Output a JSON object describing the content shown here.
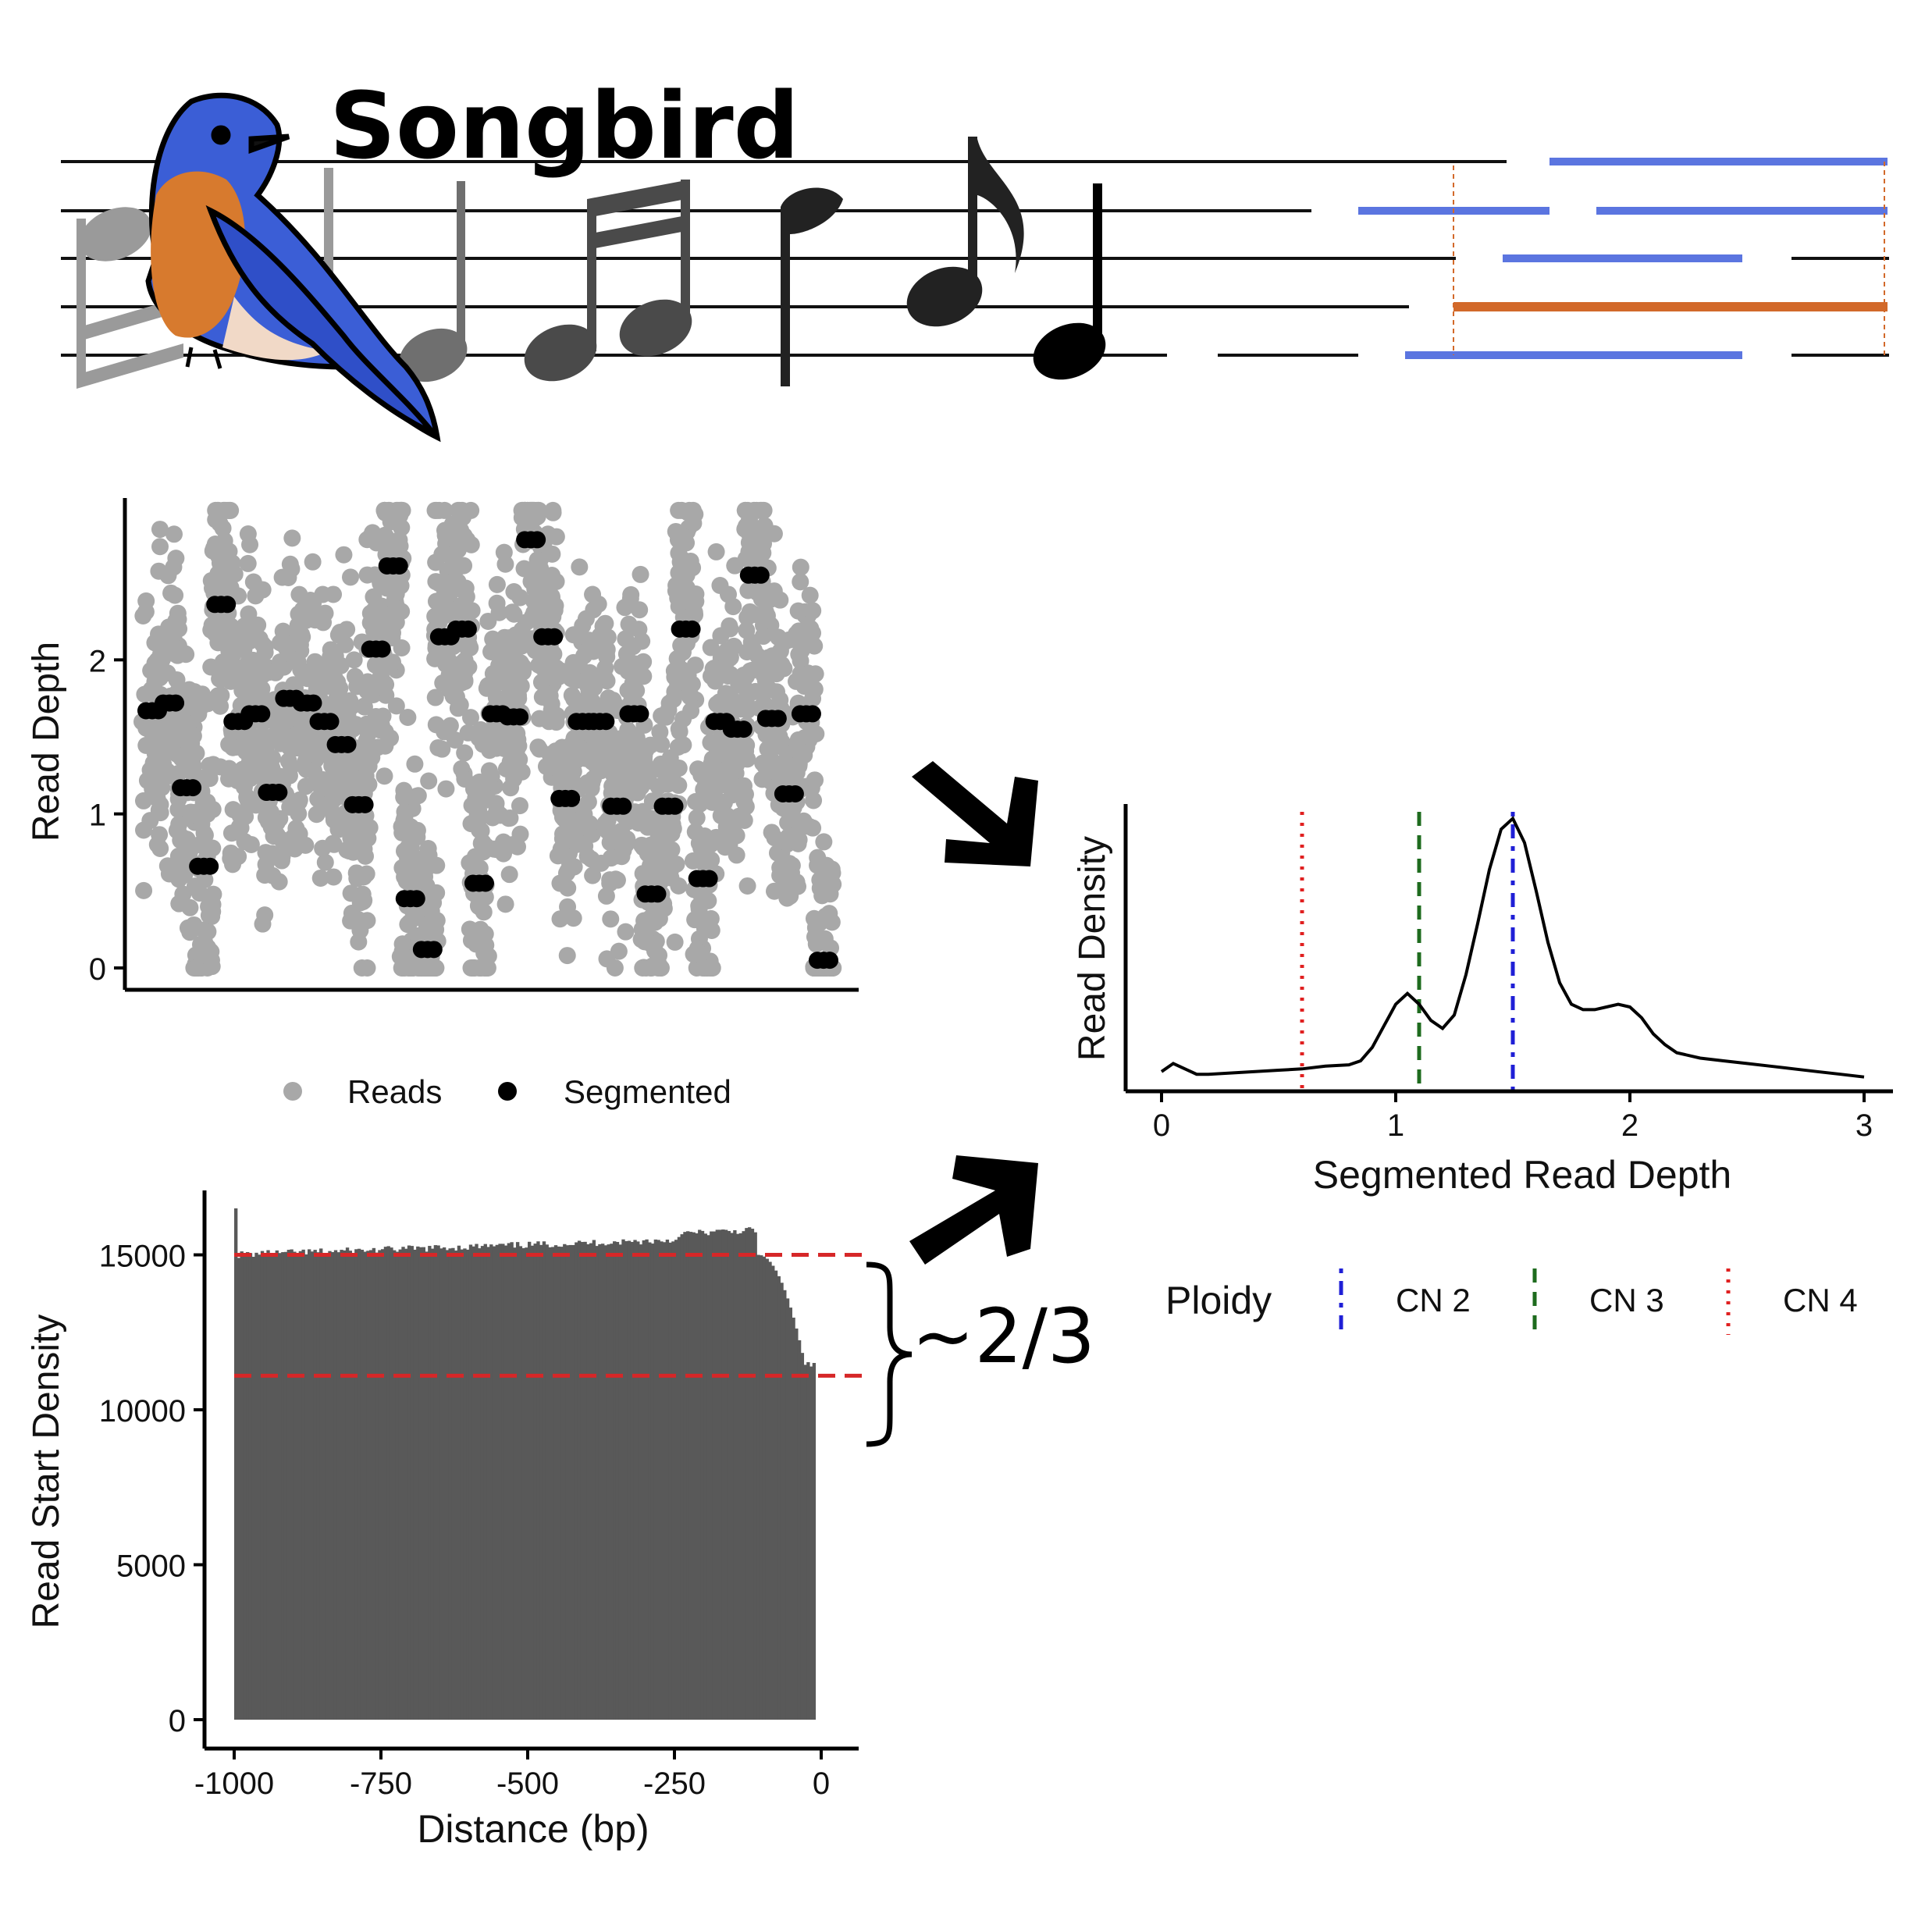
{
  "title": "Songbird",
  "icons": [
    "bluebird-icon",
    "music-notes-icon",
    "segment-lines-icon",
    "arrow-icon",
    "brace-icon"
  ],
  "colors": {
    "reads": "#a8a8a8",
    "segmented": "#000000",
    "bars": "#595959",
    "ref_line": "#d62728",
    "cn2": "#1f1fd6",
    "cn3": "#1e6b1e",
    "cn4": "#e02020",
    "segment_blue": "#5b75e0",
    "segment_orange": "#d2692a"
  },
  "annotation": {
    "fraction": "~2/3"
  },
  "chart_data": [
    {
      "type": "scatter",
      "xlabel": "",
      "ylabel": "Read Depth",
      "ylim": [
        0,
        3.0
      ],
      "yticks": [
        "0",
        "1",
        "2"
      ],
      "legend": {
        "placement": "bottom",
        "items": [
          "Reads",
          "Segmented"
        ]
      },
      "series": [
        {
          "name": "Reads",
          "x": [],
          "values": []
        },
        {
          "name": "Segmented",
          "x": [
            1,
            2,
            3,
            4,
            5,
            6,
            7,
            8,
            9,
            10,
            11,
            12,
            13,
            14,
            15,
            16,
            17,
            18,
            19,
            20,
            21,
            22,
            23,
            24,
            25,
            26,
            27,
            28,
            29,
            30,
            31,
            32,
            33,
            34,
            35,
            36,
            37,
            38,
            39,
            40
          ],
          "values": [
            1.67,
            1.72,
            1.17,
            0.66,
            2.36,
            1.6,
            1.65,
            1.14,
            1.75,
            1.72,
            1.6,
            1.45,
            1.06,
            2.07,
            2.61,
            0.45,
            0.12,
            2.15,
            2.2,
            0.55,
            1.65,
            1.63,
            2.78,
            2.15,
            1.1,
            1.6,
            1.6,
            1.05,
            1.65,
            0.48,
            1.05,
            2.2,
            0.58,
            1.6,
            1.55,
            2.55,
            1.62,
            1.13,
            1.65,
            0.05
          ]
        }
      ]
    },
    {
      "type": "bar",
      "xlabel": "Distance (bp)",
      "ylabel": "Read Start Density",
      "xlim": [
        -1000,
        0
      ],
      "ylim": [
        0,
        16500
      ],
      "xticks": [
        "-1000",
        "-750",
        "-500",
        "-250",
        "0"
      ],
      "yticks": [
        "0",
        "5000",
        "10000",
        "15000"
      ],
      "reference_lines": [
        15000,
        11100
      ],
      "x": [],
      "values": []
    },
    {
      "type": "line",
      "xlabel": "Segmented Read Depth",
      "ylabel": "Read Density",
      "xlim": [
        0,
        3
      ],
      "xticks": [
        "0",
        "1",
        "2",
        "3"
      ],
      "x": [
        0,
        0.05,
        0.1,
        0.15,
        0.2,
        0.3,
        0.4,
        0.5,
        0.6,
        0.7,
        0.8,
        0.85,
        0.9,
        0.95,
        1.0,
        1.05,
        1.1,
        1.15,
        1.2,
        1.25,
        1.3,
        1.35,
        1.4,
        1.45,
        1.5,
        1.55,
        1.6,
        1.65,
        1.7,
        1.75,
        1.8,
        1.85,
        1.9,
        1.95,
        2.0,
        2.05,
        2.1,
        2.15,
        2.2,
        2.3,
        2.4,
        2.5,
        2.6,
        2.7,
        2.8,
        2.9,
        3.0
      ],
      "values": [
        0.05,
        0.08,
        0.06,
        0.04,
        0.04,
        0.045,
        0.05,
        0.055,
        0.06,
        0.07,
        0.075,
        0.09,
        0.14,
        0.22,
        0.3,
        0.34,
        0.3,
        0.24,
        0.21,
        0.26,
        0.41,
        0.6,
        0.8,
        0.95,
        0.99,
        0.9,
        0.72,
        0.53,
        0.38,
        0.3,
        0.28,
        0.28,
        0.29,
        0.3,
        0.29,
        0.25,
        0.19,
        0.15,
        0.12,
        0.1,
        0.09,
        0.08,
        0.07,
        0.06,
        0.05,
        0.04,
        0.03
      ],
      "vertical_lines": [
        {
          "name": "CN 2",
          "x": 1.5,
          "style": "dotdash"
        },
        {
          "name": "CN 3",
          "x": 1.1,
          "style": "dashed"
        },
        {
          "name": "CN 4",
          "x": 0.6,
          "style": "dotted"
        }
      ],
      "legend": {
        "title": "Ploidy",
        "placement": "bottom",
        "items": [
          "CN 2",
          "CN 3",
          "CN 4"
        ]
      }
    }
  ]
}
